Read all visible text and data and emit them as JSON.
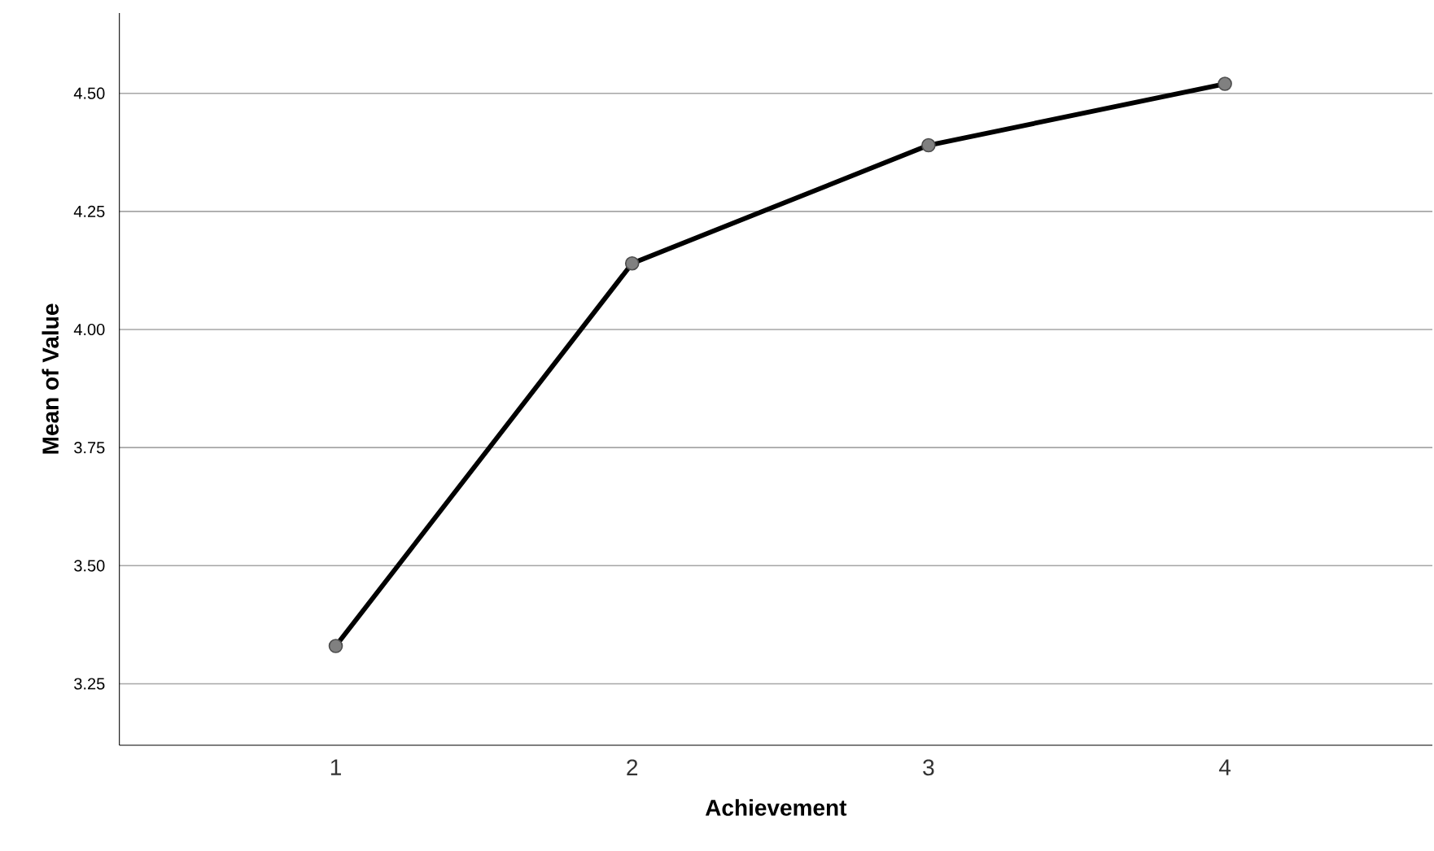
{
  "chart_data": {
    "type": "line",
    "xlabel": "Achievement",
    "ylabel": "Mean of Value",
    "categories": [
      "1",
      "2",
      "3",
      "4"
    ],
    "series": [
      {
        "color": "#000000",
        "values": [
          3.33,
          4.14,
          4.39,
          4.52
        ]
      }
    ],
    "ylim": [
      3.12,
      4.67
    ],
    "yticks": [
      {
        "value": 3.25,
        "label": "3.25"
      },
      {
        "value": 3.5,
        "label": "3.50"
      },
      {
        "value": 3.75,
        "label": "3.75"
      },
      {
        "value": 4.0,
        "label": "4.00"
      },
      {
        "value": 4.25,
        "label": "4.25"
      },
      {
        "value": 4.5,
        "label": "4.50"
      }
    ],
    "grid": "y",
    "marker": "circle",
    "line_style": "solid"
  }
}
